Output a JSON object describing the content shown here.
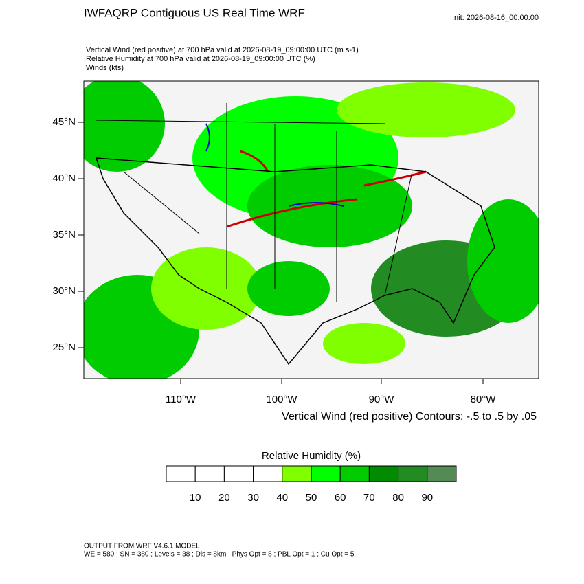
{
  "header": {
    "title": "IWFAQRP Contiguous US Real Time WRF",
    "init": "Init: 2026-08-16_00:00:00",
    "fields": [
      "Vertical Wind (red positive) at 700 hPa valid at 2026-08-19_09:00:00 UTC   (m s-1)",
      "Relative Humidity at 700 hPa valid at 2026-08-19_09:00:00 UTC   (%)",
      "Winds   (kts)"
    ]
  },
  "map": {
    "lat_labels": [
      "45°N",
      "40°N",
      "35°N",
      "30°N",
      "25°N"
    ],
    "lon_labels": [
      "110°W",
      "100°W",
      "90°W",
      "80°W"
    ],
    "contour_note": "Vertical Wind (red positive) Contours: -.5 to .5 by .05"
  },
  "colorbar": {
    "title": "Relative Humidity  (%)",
    "labels": [
      10,
      20,
      30,
      40,
      50,
      60,
      70,
      80,
      90
    ],
    "colors": [
      "#ffffff",
      "#ffffff",
      "#ffffff",
      "#ffffff",
      "#80ff00",
      "#00ff00",
      "#00cc00",
      "#008b00",
      "#228b22",
      "#548b54"
    ]
  },
  "footer": {
    "model": "OUTPUT FROM WRF V4.6.1 MODEL",
    "details": "WE = 580 ; SN = 380 ; Levels = 38 ; Dis = 8km ; Phys Opt = 8 ; PBL Opt = 1 ; Cu Opt = 5"
  }
}
